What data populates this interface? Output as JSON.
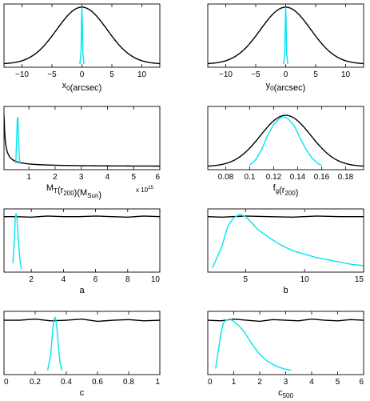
{
  "colors": {
    "prior": "#000000",
    "posterior": "#00e5ee",
    "background": "#ffffff"
  },
  "chart_data": [
    {
      "type": "line",
      "id": "x0",
      "xlabel_parts": [
        {
          "t": "x"
        },
        {
          "t": "0",
          "sub": true
        },
        {
          "t": "(arcsec)"
        }
      ],
      "xlim": [
        -13,
        13
      ],
      "ylim": [
        0,
        1
      ],
      "xticks": [
        -10,
        -5,
        0,
        5,
        10
      ],
      "xticklabels": [
        "−10",
        "−5",
        "0",
        "5",
        "10"
      ],
      "series": [
        {
          "role": "prior",
          "kind": "gauss",
          "mu": 0,
          "sigma": 4.2,
          "amp": 1.0,
          "x": [
            -13,
            13
          ]
        },
        {
          "role": "posterior",
          "x": [
            -0.35,
            -0.15,
            -0.05,
            0.0,
            0.05,
            0.15,
            0.35
          ],
          "y": [
            0,
            0.2,
            0.85,
            1.0,
            0.85,
            0.2,
            0
          ]
        }
      ]
    },
    {
      "type": "line",
      "id": "y0",
      "xlabel_parts": [
        {
          "t": "y"
        },
        {
          "t": "0",
          "sub": true
        },
        {
          "t": "(arcsec)"
        }
      ],
      "xlim": [
        -13,
        13
      ],
      "ylim": [
        0,
        1
      ],
      "xticks": [
        -10,
        -5,
        0,
        5,
        10
      ],
      "xticklabels": [
        "−10",
        "−5",
        "0",
        "5",
        "10"
      ],
      "series": [
        {
          "role": "prior",
          "kind": "gauss",
          "mu": 0,
          "sigma": 4.2,
          "amp": 1.0,
          "x": [
            -13,
            13
          ]
        },
        {
          "role": "posterior",
          "x": [
            -0.35,
            -0.15,
            -0.05,
            0.0,
            0.05,
            0.15,
            0.35
          ],
          "y": [
            0,
            0.2,
            0.85,
            1.0,
            0.85,
            0.2,
            0
          ]
        }
      ]
    },
    {
      "type": "line",
      "id": "MT",
      "xlabel_parts": [
        {
          "t": "M"
        },
        {
          "t": "T",
          "sub": true
        },
        {
          "t": "(r"
        },
        {
          "t": "200",
          "sub": true
        },
        {
          "t": ")(M"
        },
        {
          "t": "Sun",
          "sub": true
        },
        {
          "t": ")"
        }
      ],
      "multiplier": {
        "base": "x 10",
        "exp": "15"
      },
      "xlim": [
        0.05,
        6
      ],
      "ylim": [
        0,
        1
      ],
      "xticks": [
        1,
        2,
        3,
        4,
        5,
        6
      ],
      "xticklabels": [
        "1",
        "2",
        "3",
        "4",
        "5",
        "6"
      ],
      "series": [
        {
          "role": "prior",
          "kind": "inverse",
          "k": 0.0455,
          "x": [
            0.05,
            6
          ]
        },
        {
          "role": "posterior",
          "x": [
            0.5,
            0.53,
            0.56,
            0.58,
            0.6,
            0.63,
            0.66
          ],
          "y": [
            0.05,
            0.45,
            0.85,
            0.86,
            0.6,
            0.2,
            0.05
          ]
        }
      ]
    },
    {
      "type": "line",
      "id": "fg",
      "xlabel_parts": [
        {
          "t": "f"
        },
        {
          "t": "g",
          "sub": true
        },
        {
          "t": "(r"
        },
        {
          "t": "200",
          "sub": true
        },
        {
          "t": ")"
        }
      ],
      "xlim": [
        0.065,
        0.195
      ],
      "ylim": [
        0,
        1
      ],
      "xticks": [
        0.08,
        0.1,
        0.12,
        0.14,
        0.16,
        0.18
      ],
      "xticklabels": [
        "0.08",
        "0.1",
        "0.12",
        "0.14",
        "0.16",
        "0.18"
      ],
      "series": [
        {
          "role": "prior",
          "kind": "gauss",
          "mu": 0.13,
          "sigma": 0.021,
          "amp": 0.9,
          "x": [
            0.065,
            0.195
          ]
        },
        {
          "role": "posterior",
          "x": [
            0.1,
            0.105,
            0.11,
            0.115,
            0.12,
            0.125,
            0.128,
            0.132,
            0.137,
            0.142,
            0.147,
            0.152,
            0.157,
            0.16
          ],
          "y": [
            0.02,
            0.12,
            0.3,
            0.55,
            0.74,
            0.85,
            0.88,
            0.84,
            0.72,
            0.5,
            0.3,
            0.15,
            0.05,
            0.02
          ]
        }
      ]
    },
    {
      "type": "line",
      "id": "a",
      "xlabel_parts": [
        {
          "t": "a"
        }
      ],
      "xlim": [
        0.3,
        10
      ],
      "ylim": [
        0,
        1
      ],
      "xticks": [
        2,
        4,
        6,
        8,
        10
      ],
      "xticklabels": [
        "2",
        "4",
        "6",
        "8",
        "10"
      ],
      "series": [
        {
          "role": "prior",
          "x": [
            0.3,
            1,
            2,
            3,
            4,
            5,
            6,
            7,
            8,
            9,
            10
          ],
          "y": [
            0.92,
            0.92,
            0.91,
            0.93,
            0.92,
            0.92,
            0.93,
            0.92,
            0.91,
            0.93,
            0.92
          ]
        },
        {
          "role": "posterior",
          "x": [
            0.85,
            0.95,
            1.0,
            1.05,
            1.1,
            1.15,
            1.2,
            1.25,
            1.3,
            1.35,
            1.4
          ],
          "y": [
            0.1,
            0.5,
            0.9,
            0.97,
            0.92,
            0.7,
            0.5,
            0.3,
            0.15,
            0.05,
            0.0
          ]
        }
      ]
    },
    {
      "type": "line",
      "id": "b",
      "xlabel_parts": [
        {
          "t": "b"
        }
      ],
      "xlim": [
        1.8,
        15
      ],
      "ylim": [
        0,
        1
      ],
      "xticks": [
        5,
        10,
        15
      ],
      "xticklabels": [
        "5",
        "10",
        "15"
      ],
      "series": [
        {
          "role": "prior",
          "x": [
            1.8,
            3,
            5,
            7,
            9,
            11,
            13,
            15
          ],
          "y": [
            0.92,
            0.91,
            0.93,
            0.92,
            0.91,
            0.93,
            0.92,
            0.92
          ]
        },
        {
          "role": "posterior",
          "x": [
            2.2,
            3,
            3.5,
            4,
            4.5,
            5,
            5.5,
            6,
            7,
            8,
            9,
            10,
            11,
            12,
            13,
            14,
            15
          ],
          "y": [
            0.02,
            0.4,
            0.75,
            0.9,
            0.96,
            0.92,
            0.82,
            0.7,
            0.55,
            0.42,
            0.32,
            0.26,
            0.2,
            0.16,
            0.12,
            0.08,
            0.06
          ]
        }
      ]
    },
    {
      "type": "line",
      "id": "c",
      "xlabel_parts": [
        {
          "t": "c"
        }
      ],
      "xlim": [
        0,
        1
      ],
      "ylim": [
        0,
        1
      ],
      "xticks": [
        0,
        0.2,
        0.4,
        0.6,
        0.8,
        1
      ],
      "xticklabels": [
        "0",
        "0.2",
        "0.4",
        "0.6",
        "0.8",
        "1"
      ],
      "series": [
        {
          "role": "prior",
          "x": [
            0,
            0.1,
            0.2,
            0.3,
            0.4,
            0.5,
            0.6,
            0.7,
            0.8,
            0.9,
            1.0
          ],
          "y": [
            0.9,
            0.9,
            0.92,
            0.89,
            0.9,
            0.92,
            0.88,
            0.9,
            0.91,
            0.89,
            0.9
          ]
        },
        {
          "role": "posterior",
          "x": [
            0.28,
            0.3,
            0.31,
            0.32,
            0.33,
            0.34,
            0.35,
            0.36,
            0.37
          ],
          "y": [
            0.02,
            0.3,
            0.65,
            0.92,
            0.95,
            0.75,
            0.4,
            0.15,
            0.02
          ]
        }
      ]
    },
    {
      "type": "line",
      "id": "c500",
      "xlabel_parts": [
        {
          "t": "c"
        },
        {
          "t": "500",
          "sub": true
        }
      ],
      "xlim": [
        0,
        6
      ],
      "ylim": [
        0,
        1
      ],
      "xticks": [
        0,
        1,
        2,
        3,
        4,
        5,
        6
      ],
      "xticklabels": [
        "0",
        "1",
        "2",
        "3",
        "4",
        "5",
        "6"
      ],
      "series": [
        {
          "role": "prior",
          "x": [
            0,
            0.5,
            1,
            1.5,
            2,
            2.5,
            3,
            3.5,
            4,
            4.5,
            5,
            5.5,
            6
          ],
          "y": [
            0.9,
            0.89,
            0.92,
            0.9,
            0.88,
            0.91,
            0.9,
            0.89,
            0.92,
            0.9,
            0.89,
            0.91,
            0.9
          ]
        },
        {
          "role": "posterior",
          "x": [
            0.3,
            0.4,
            0.5,
            0.6,
            0.7,
            0.85,
            1.0,
            1.2,
            1.4,
            1.6,
            1.8,
            2.0,
            2.3,
            2.6,
            2.9,
            3.2
          ],
          "y": [
            0.05,
            0.35,
            0.65,
            0.85,
            0.9,
            0.92,
            0.88,
            0.8,
            0.7,
            0.55,
            0.42,
            0.3,
            0.18,
            0.1,
            0.05,
            0.02
          ]
        }
      ]
    }
  ]
}
